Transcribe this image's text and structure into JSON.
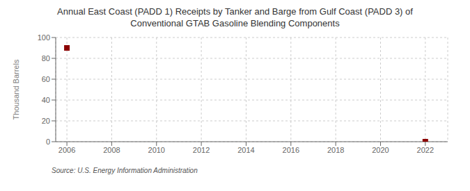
{
  "chart_data": {
    "type": "scatter",
    "title": "Annual East Coast (PADD 1) Receipts by Tanker and Barge from Gulf Coast (PADD 3) of\nConventional GTAB Gasoline Blending Components",
    "ylabel": "Thousand Barrels",
    "source": "Source: U.S. Energy Information Administration",
    "x": [
      2006,
      2022
    ],
    "values": [
      90,
      0
    ],
    "xlim": [
      2005.5,
      2023
    ],
    "ylim": [
      0,
      100
    ],
    "xticks": [
      2006,
      2008,
      2010,
      2012,
      2014,
      2016,
      2018,
      2020,
      2022
    ],
    "yticks": [
      0,
      20,
      40,
      60,
      80,
      100
    ],
    "color": "#8B0000",
    "marker": "square",
    "grid": true
  }
}
